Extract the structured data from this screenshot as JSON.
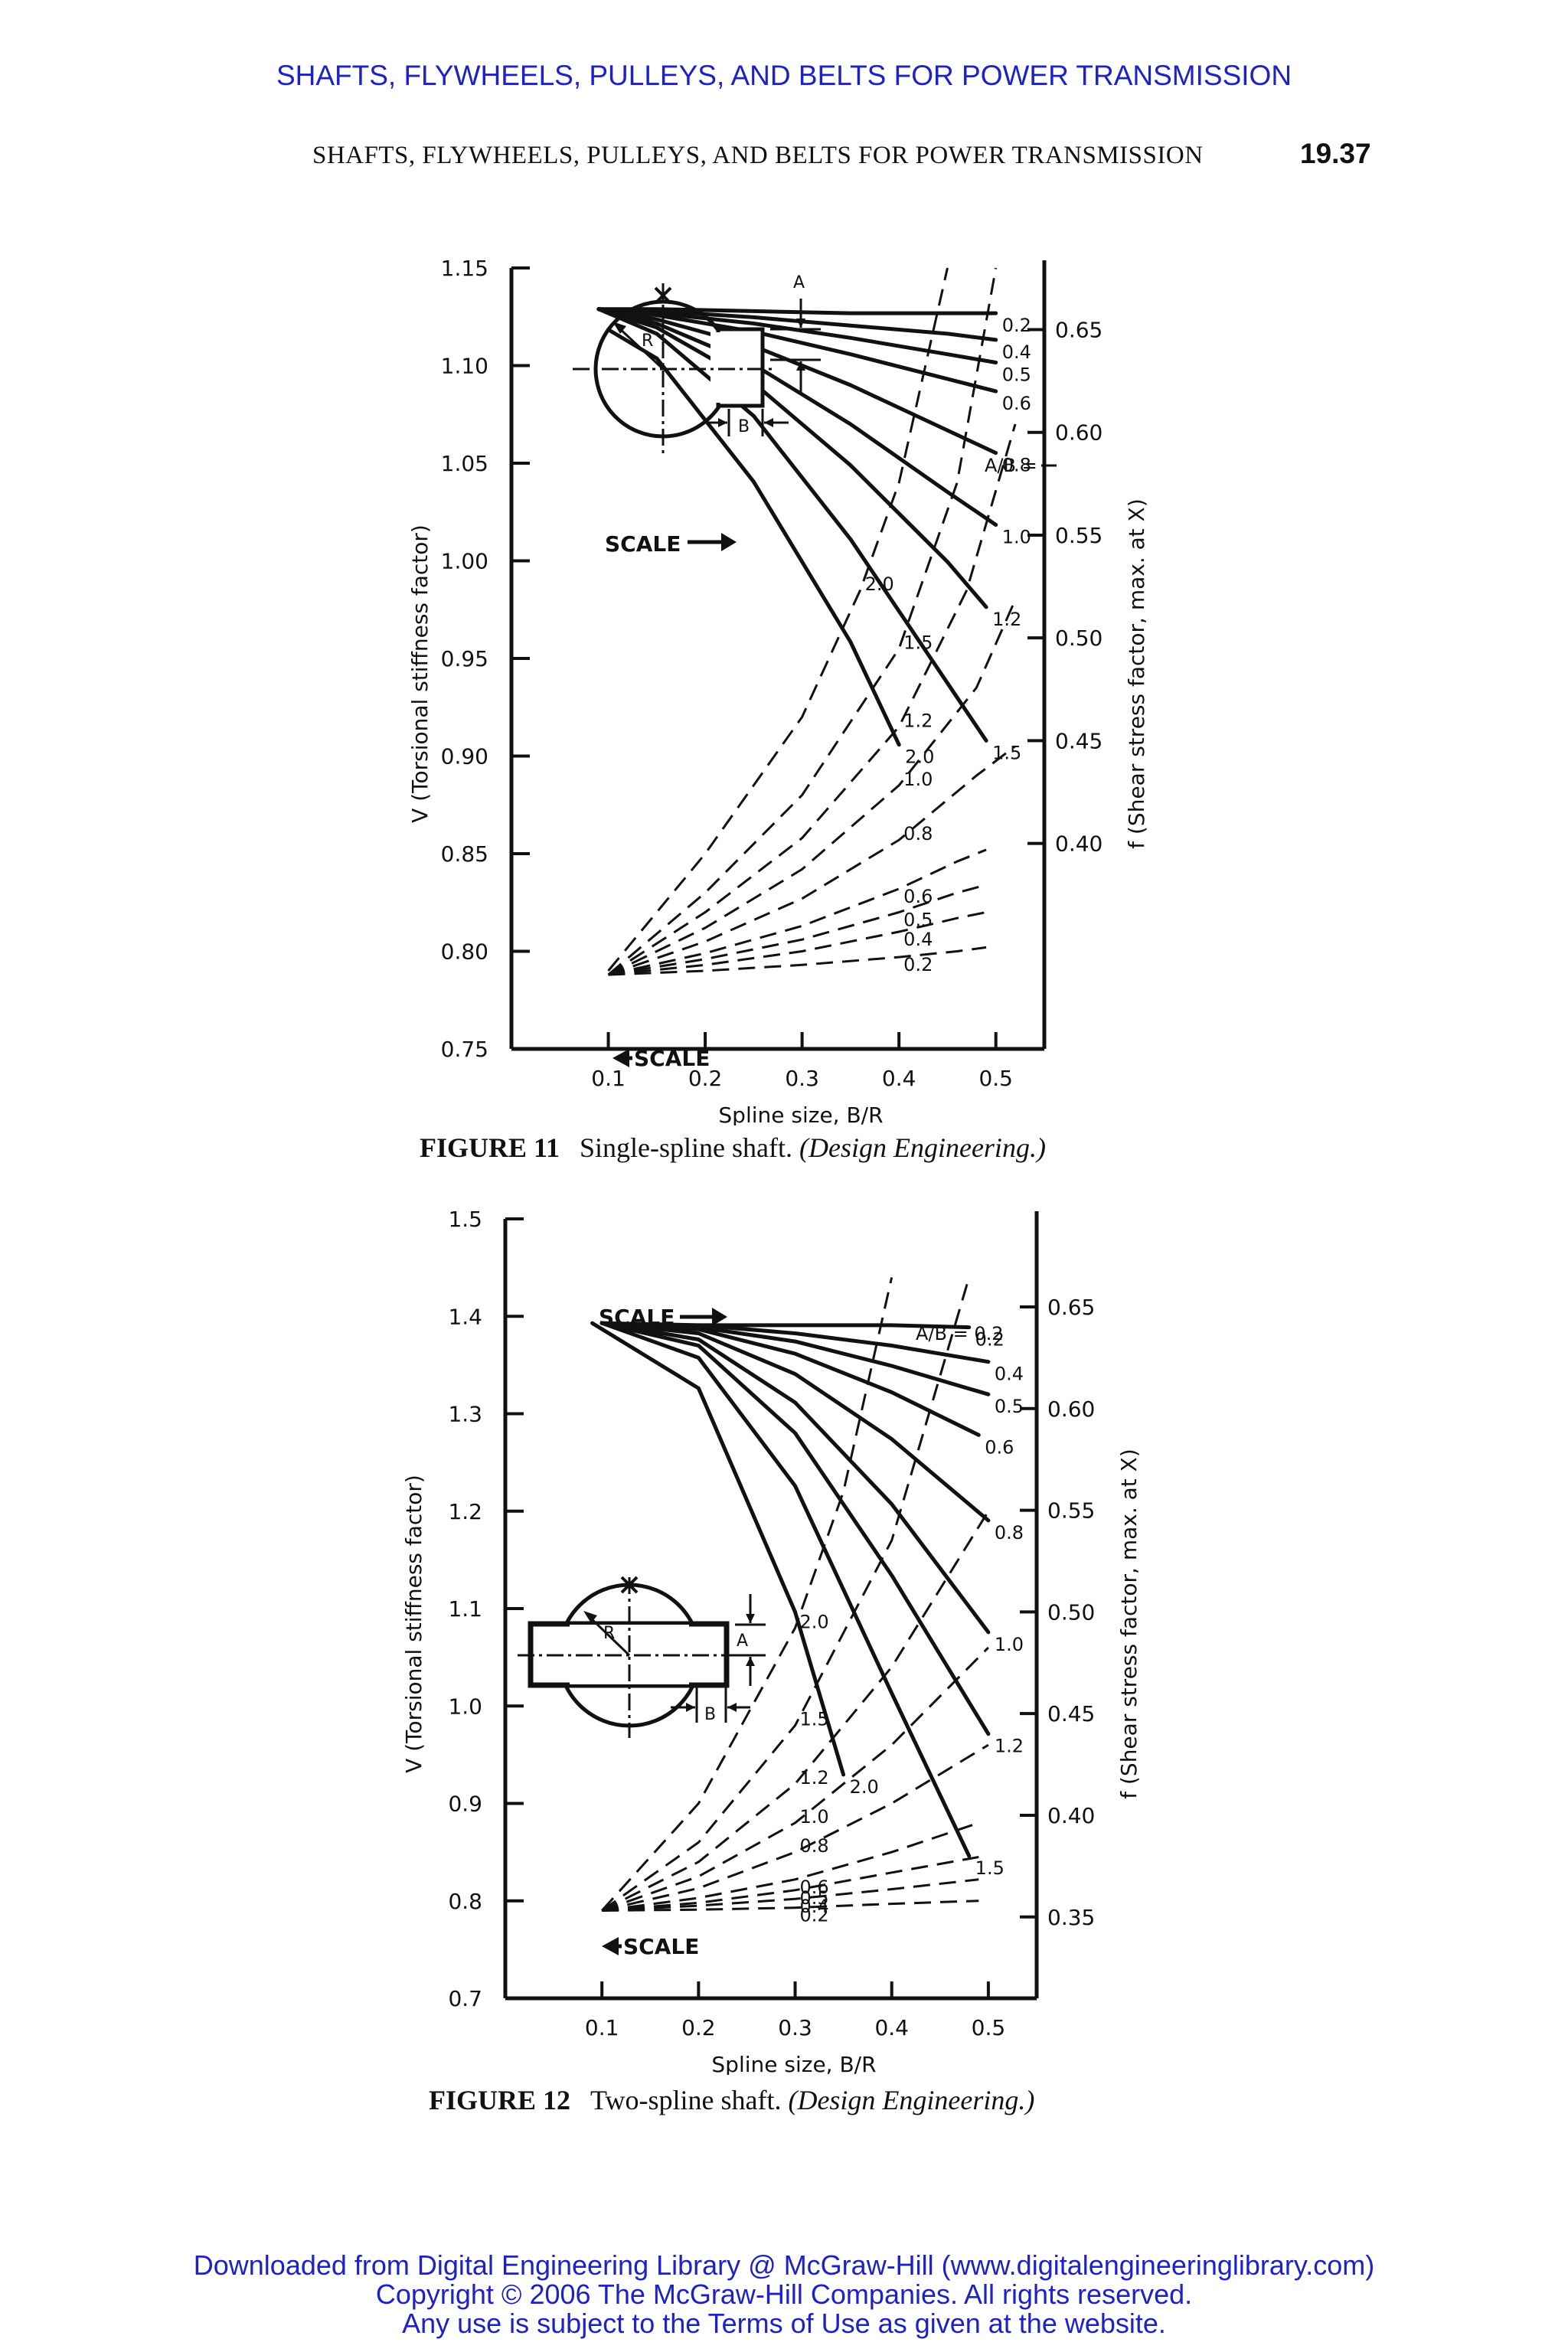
{
  "header": {
    "link_title": "SHAFTS, FLYWHEELS, PULLEYS, AND BELTS FOR POWER TRANSMISSION",
    "running_head": "SHAFTS, FLYWHEELS, PULLEYS, AND BELTS FOR POWER TRANSMISSION",
    "page_number": "19.37"
  },
  "figures": [
    {
      "number": "FIGURE 11",
      "caption": "Single-spline shaft.",
      "source": "(Design Engineering.)"
    },
    {
      "number": "FIGURE 12",
      "caption": "Two-spline shaft.",
      "source": "(Design Engineering.)"
    }
  ],
  "footer": {
    "line1": "Downloaded from Digital Engineering Library @ McGraw-Hill (www.digitalengineeringlibrary.com)",
    "line2": "Copyright © 2006 The McGraw-Hill Companies. All rights reserved.",
    "line3": "Any use is subject to the Terms of Use as given at the website."
  },
  "chart_data": [
    {
      "type": "line",
      "xlabel": "Spline size, B/R",
      "ylabel": "V (Torsional stiffness factor)",
      "y2label": "f (Shear stress factor, max. at X)",
      "xlim": [
        0.0,
        0.55
      ],
      "ylim": [
        0.75,
        1.15
      ],
      "y2lim": [
        0.3,
        0.68
      ],
      "x_ticks": [
        0.1,
        0.2,
        0.3,
        0.4,
        0.5
      ],
      "x_tick_labels": [
        "0.1",
        "0.2",
        "0.3",
        "0.4",
        "0.5"
      ],
      "y_ticks": [
        0.75,
        0.8,
        0.85,
        0.9,
        0.95,
        1.0,
        1.05,
        1.1,
        1.15
      ],
      "y_tick_labels": [
        "0.75",
        "0.80",
        "0.85",
        "0.90",
        "0.95",
        "1.00",
        "1.05",
        "1.10",
        "1.15"
      ],
      "y2_ticks": [
        0.4,
        0.45,
        0.5,
        0.55,
        0.6,
        0.65
      ],
      "y2_tick_labels": [
        "0.40",
        "0.45",
        "0.50",
        "0.55",
        "0.60",
        "0.65"
      ],
      "annotations": {
        "ab_eq": "A/B =",
        "scale_right": "SCALE",
        "scale_left": "SCALE",
        "diagram_a": "A",
        "diagram_b": "B",
        "diagram_r": "R",
        "diagram_x": "X"
      },
      "solid_series": [
        {
          "label": "0.2",
          "x": [
            0.09,
            0.15,
            0.25,
            0.35,
            0.45,
            0.5
          ],
          "y": [
            0.66,
            0.66,
            0.659,
            0.658,
            0.658,
            0.658
          ]
        },
        {
          "label": "0.4",
          "x": [
            0.09,
            0.15,
            0.25,
            0.35,
            0.45,
            0.5
          ],
          "y": [
            0.66,
            0.659,
            0.656,
            0.652,
            0.648,
            0.645
          ]
        },
        {
          "label": "0.5",
          "x": [
            0.09,
            0.15,
            0.25,
            0.35,
            0.45,
            0.5
          ],
          "y": [
            0.66,
            0.658,
            0.653,
            0.646,
            0.638,
            0.634
          ]
        },
        {
          "label": "0.6",
          "x": [
            0.09,
            0.15,
            0.25,
            0.35,
            0.45,
            0.5
          ],
          "y": [
            0.66,
            0.657,
            0.649,
            0.638,
            0.626,
            0.62
          ]
        },
        {
          "label": "0.8",
          "x": [
            0.09,
            0.15,
            0.25,
            0.35,
            0.45,
            0.5
          ],
          "y": [
            0.66,
            0.655,
            0.642,
            0.623,
            0.601,
            0.59
          ]
        },
        {
          "label": "1.0",
          "x": [
            0.09,
            0.15,
            0.25,
            0.35,
            0.45,
            0.5
          ],
          "y": [
            0.66,
            0.653,
            0.633,
            0.604,
            0.571,
            0.555
          ]
        },
        {
          "label": "1.2",
          "x": [
            0.09,
            0.15,
            0.25,
            0.35,
            0.45,
            0.49
          ],
          "y": [
            0.66,
            0.651,
            0.624,
            0.584,
            0.537,
            0.515
          ]
        },
        {
          "label": "1.5",
          "x": [
            0.09,
            0.15,
            0.25,
            0.35,
            0.45,
            0.49
          ],
          "y": [
            0.66,
            0.648,
            0.608,
            0.548,
            0.478,
            0.45
          ]
        },
        {
          "label": "2.0",
          "x": [
            0.1,
            0.15,
            0.25,
            0.35,
            0.4
          ],
          "y": [
            0.65,
            0.636,
            0.576,
            0.498,
            0.448
          ]
        }
      ],
      "dashed_series": [
        {
          "label": "2.0",
          "x": [
            0.1,
            0.2,
            0.3,
            0.36,
            0.4,
            0.45
          ],
          "y": [
            0.79,
            0.85,
            0.92,
            0.985,
            1.04,
            1.15
          ]
        },
        {
          "label": "1.5",
          "x": [
            0.1,
            0.2,
            0.3,
            0.4,
            0.46,
            0.5
          ],
          "y": [
            0.788,
            0.83,
            0.88,
            0.955,
            1.04,
            1.15
          ]
        },
        {
          "label": "1.2",
          "x": [
            0.1,
            0.2,
            0.3,
            0.4,
            0.47,
            0.52
          ],
          "y": [
            0.788,
            0.82,
            0.858,
            0.915,
            0.985,
            1.07
          ]
        },
        {
          "label": "1.0",
          "x": [
            0.1,
            0.2,
            0.3,
            0.4,
            0.48,
            0.52
          ],
          "y": [
            0.788,
            0.812,
            0.842,
            0.885,
            0.935,
            0.98
          ]
        },
        {
          "label": "0.8",
          "x": [
            0.1,
            0.2,
            0.3,
            0.4,
            0.48,
            0.52
          ],
          "y": [
            0.788,
            0.805,
            0.827,
            0.857,
            0.89,
            0.905
          ]
        },
        {
          "label": "0.6",
          "x": [
            0.1,
            0.2,
            0.3,
            0.4,
            0.46,
            0.49
          ],
          "y": [
            0.788,
            0.799,
            0.813,
            0.832,
            0.846,
            0.852
          ]
        },
        {
          "label": "0.5",
          "x": [
            0.1,
            0.2,
            0.3,
            0.4,
            0.46,
            0.49
          ],
          "y": [
            0.788,
            0.796,
            0.806,
            0.82,
            0.83,
            0.834
          ]
        },
        {
          "label": "0.4",
          "x": [
            0.1,
            0.2,
            0.3,
            0.4,
            0.46,
            0.49
          ],
          "y": [
            0.788,
            0.793,
            0.8,
            0.81,
            0.817,
            0.82
          ]
        },
        {
          "label": "0.2",
          "x": [
            0.1,
            0.2,
            0.3,
            0.4,
            0.46,
            0.49
          ],
          "y": [
            0.788,
            0.79,
            0.793,
            0.797,
            0.8,
            0.802
          ]
        }
      ]
    },
    {
      "type": "line",
      "xlabel": "Spline size, B/R",
      "ylabel": "V (Torsional stiffness factor)",
      "y2label": "f (Shear stress factor, max. at X)",
      "xlim": [
        0.0,
        0.55
      ],
      "ylim": [
        0.7,
        1.5
      ],
      "y2lim": [
        0.31,
        0.6933
      ],
      "x_ticks": [
        0.1,
        0.2,
        0.3,
        0.4,
        0.5
      ],
      "x_tick_labels": [
        "0.1",
        "0.2",
        "0.3",
        "0.4",
        "0.5"
      ],
      "y_ticks": [
        0.7,
        0.8,
        0.9,
        1.0,
        1.1,
        1.2,
        1.3,
        1.4,
        1.5
      ],
      "y_tick_labels": [
        "0.7",
        "0.8",
        "0.9",
        "1.0",
        "1.1",
        "1.2",
        "1.3",
        "1.4",
        "1.5"
      ],
      "y2_ticks": [
        0.35,
        0.4,
        0.45,
        0.5,
        0.55,
        0.6,
        0.65
      ],
      "y2_tick_labels": [
        "0.35",
        "0.40",
        "0.45",
        "0.50",
        "0.55",
        "0.60",
        "0.65"
      ],
      "annotations": {
        "ab_eq": "A/B = 0.2",
        "scale_right": "SCALE",
        "scale_left": "SCALE",
        "diagram_a": "A",
        "diagram_b": "B",
        "diagram_r": "R",
        "diagram_x": "X"
      },
      "solid_series": [
        {
          "label": "0.2",
          "x": [
            0.2,
            0.3,
            0.4,
            0.48
          ],
          "y": [
            0.641,
            0.641,
            0.641,
            0.64
          ]
        },
        {
          "label": "0.4",
          "x": [
            0.1,
            0.2,
            0.3,
            0.4,
            0.5
          ],
          "y": [
            0.642,
            0.641,
            0.637,
            0.631,
            0.623
          ]
        },
        {
          "label": "0.5",
          "x": [
            0.1,
            0.2,
            0.3,
            0.4,
            0.5
          ],
          "y": [
            0.642,
            0.64,
            0.633,
            0.621,
            0.607
          ]
        },
        {
          "label": "0.6",
          "x": [
            0.1,
            0.2,
            0.3,
            0.4,
            0.49
          ],
          "y": [
            0.642,
            0.639,
            0.627,
            0.608,
            0.587
          ]
        },
        {
          "label": "0.8",
          "x": [
            0.1,
            0.2,
            0.3,
            0.4,
            0.5
          ],
          "y": [
            0.642,
            0.637,
            0.617,
            0.585,
            0.545
          ]
        },
        {
          "label": "1.0",
          "x": [
            0.1,
            0.2,
            0.3,
            0.4,
            0.5
          ],
          "y": [
            0.642,
            0.634,
            0.603,
            0.553,
            0.49
          ]
        },
        {
          "label": "1.2",
          "x": [
            0.1,
            0.2,
            0.3,
            0.4,
            0.5
          ],
          "y": [
            0.642,
            0.631,
            0.588,
            0.518,
            0.44
          ]
        },
        {
          "label": "1.5",
          "x": [
            0.1,
            0.2,
            0.3,
            0.4,
            0.48
          ],
          "y": [
            0.642,
            0.625,
            0.562,
            0.46,
            0.38
          ]
        },
        {
          "label": "2.0",
          "x": [
            0.09,
            0.2,
            0.3,
            0.35
          ],
          "y": [
            0.642,
            0.61,
            0.5,
            0.42
          ]
        }
      ],
      "dashed_series": [
        {
          "label": "2.0",
          "x": [
            0.1,
            0.2,
            0.3,
            0.35,
            0.4
          ],
          "y": [
            0.79,
            0.9,
            1.08,
            1.22,
            1.44
          ]
        },
        {
          "label": "1.5",
          "x": [
            0.1,
            0.2,
            0.3,
            0.4,
            0.48
          ],
          "y": [
            0.79,
            0.86,
            0.98,
            1.17,
            1.44
          ]
        },
        {
          "label": "1.2",
          "x": [
            0.1,
            0.2,
            0.3,
            0.4,
            0.5
          ],
          "y": [
            0.79,
            0.84,
            0.92,
            1.04,
            1.2
          ]
        },
        {
          "label": "1.0",
          "x": [
            0.1,
            0.2,
            0.3,
            0.4,
            0.5
          ],
          "y": [
            0.79,
            0.825,
            0.88,
            0.96,
            1.06
          ]
        },
        {
          "label": "0.8",
          "x": [
            0.1,
            0.2,
            0.3,
            0.4,
            0.5
          ],
          "y": [
            0.79,
            0.813,
            0.85,
            0.9,
            0.96
          ]
        },
        {
          "label": "0.6",
          "x": [
            0.1,
            0.2,
            0.3,
            0.4,
            0.49
          ],
          "y": [
            0.79,
            0.803,
            0.822,
            0.85,
            0.88
          ]
        },
        {
          "label": "0.5",
          "x": [
            0.1,
            0.2,
            0.3,
            0.4,
            0.49
          ],
          "y": [
            0.79,
            0.798,
            0.811,
            0.829,
            0.845
          ]
        },
        {
          "label": "0.4",
          "x": [
            0.1,
            0.2,
            0.3,
            0.4,
            0.49
          ],
          "y": [
            0.79,
            0.795,
            0.802,
            0.812,
            0.822
          ]
        },
        {
          "label": "0.2",
          "x": [
            0.1,
            0.2,
            0.3,
            0.4,
            0.49
          ],
          "y": [
            0.79,
            0.791,
            0.793,
            0.797,
            0.8
          ]
        }
      ]
    }
  ]
}
